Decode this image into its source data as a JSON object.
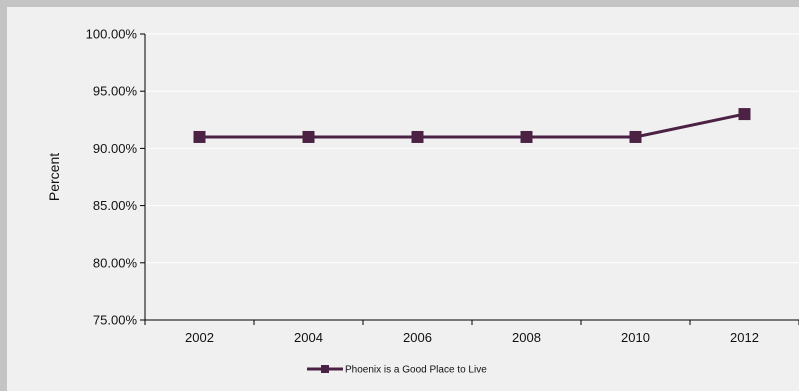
{
  "chart_data": {
    "type": "line",
    "title": "",
    "xlabel": "",
    "ylabel": "Percent",
    "categories": [
      "2002",
      "2004",
      "2006",
      "2008",
      "2010",
      "2012"
    ],
    "y_tick_labels": [
      "100.00%",
      "95.00%",
      "90.00%",
      "85.00%",
      "80.00%",
      "75.00%"
    ],
    "ylim": [
      75,
      100
    ],
    "y_tick_step": 5,
    "grid": "horizontal",
    "legend_position": "bottom-center",
    "series": [
      {
        "name": "Phoenix is a Good Place to Live",
        "values": [
          91,
          91,
          91,
          91,
          91,
          93
        ],
        "color": "#4b2243",
        "marker": "square"
      }
    ]
  },
  "colors": {
    "outer_background": "#c4c4c4",
    "plot_background": "#f0f0f0",
    "gridline": "#ffffff",
    "axis": "#000000"
  }
}
